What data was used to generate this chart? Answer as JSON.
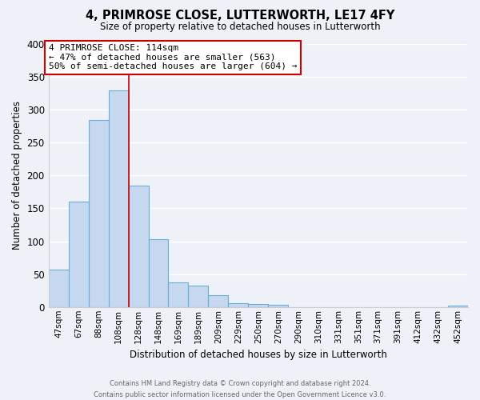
{
  "title": "4, PRIMROSE CLOSE, LUTTERWORTH, LE17 4FY",
  "subtitle": "Size of property relative to detached houses in Lutterworth",
  "xlabel": "Distribution of detached houses by size in Lutterworth",
  "ylabel": "Number of detached properties",
  "bar_labels": [
    "47sqm",
    "67sqm",
    "88sqm",
    "108sqm",
    "128sqm",
    "148sqm",
    "169sqm",
    "189sqm",
    "209sqm",
    "229sqm",
    "250sqm",
    "270sqm",
    "290sqm",
    "310sqm",
    "331sqm",
    "351sqm",
    "371sqm",
    "391sqm",
    "412sqm",
    "432sqm",
    "452sqm"
  ],
  "bar_values": [
    57,
    160,
    284,
    330,
    185,
    103,
    37,
    32,
    18,
    6,
    5,
    3,
    0,
    0,
    0,
    0,
    0,
    0,
    0,
    0,
    2
  ],
  "bar_color": "#c5d8ef",
  "bar_edge_color": "#6aaed6",
  "vline_x": 3.5,
  "vline_color": "#cc0000",
  "ylim": [
    0,
    400
  ],
  "yticks": [
    0,
    50,
    100,
    150,
    200,
    250,
    300,
    350,
    400
  ],
  "annotation_line1": "4 PRIMROSE CLOSE: 114sqm",
  "annotation_line2": "← 47% of detached houses are smaller (563)",
  "annotation_line3": "50% of semi-detached houses are larger (604) →",
  "annotation_box_color": "#ffffff",
  "annotation_box_edge": "#cc0000",
  "footer_line1": "Contains HM Land Registry data © Crown copyright and database right 2024.",
  "footer_line2": "Contains public sector information licensed under the Open Government Licence v3.0.",
  "background_color": "#eef2f8",
  "grid_color": "#ffffff",
  "figsize": [
    6.0,
    5.0
  ],
  "dpi": 100
}
